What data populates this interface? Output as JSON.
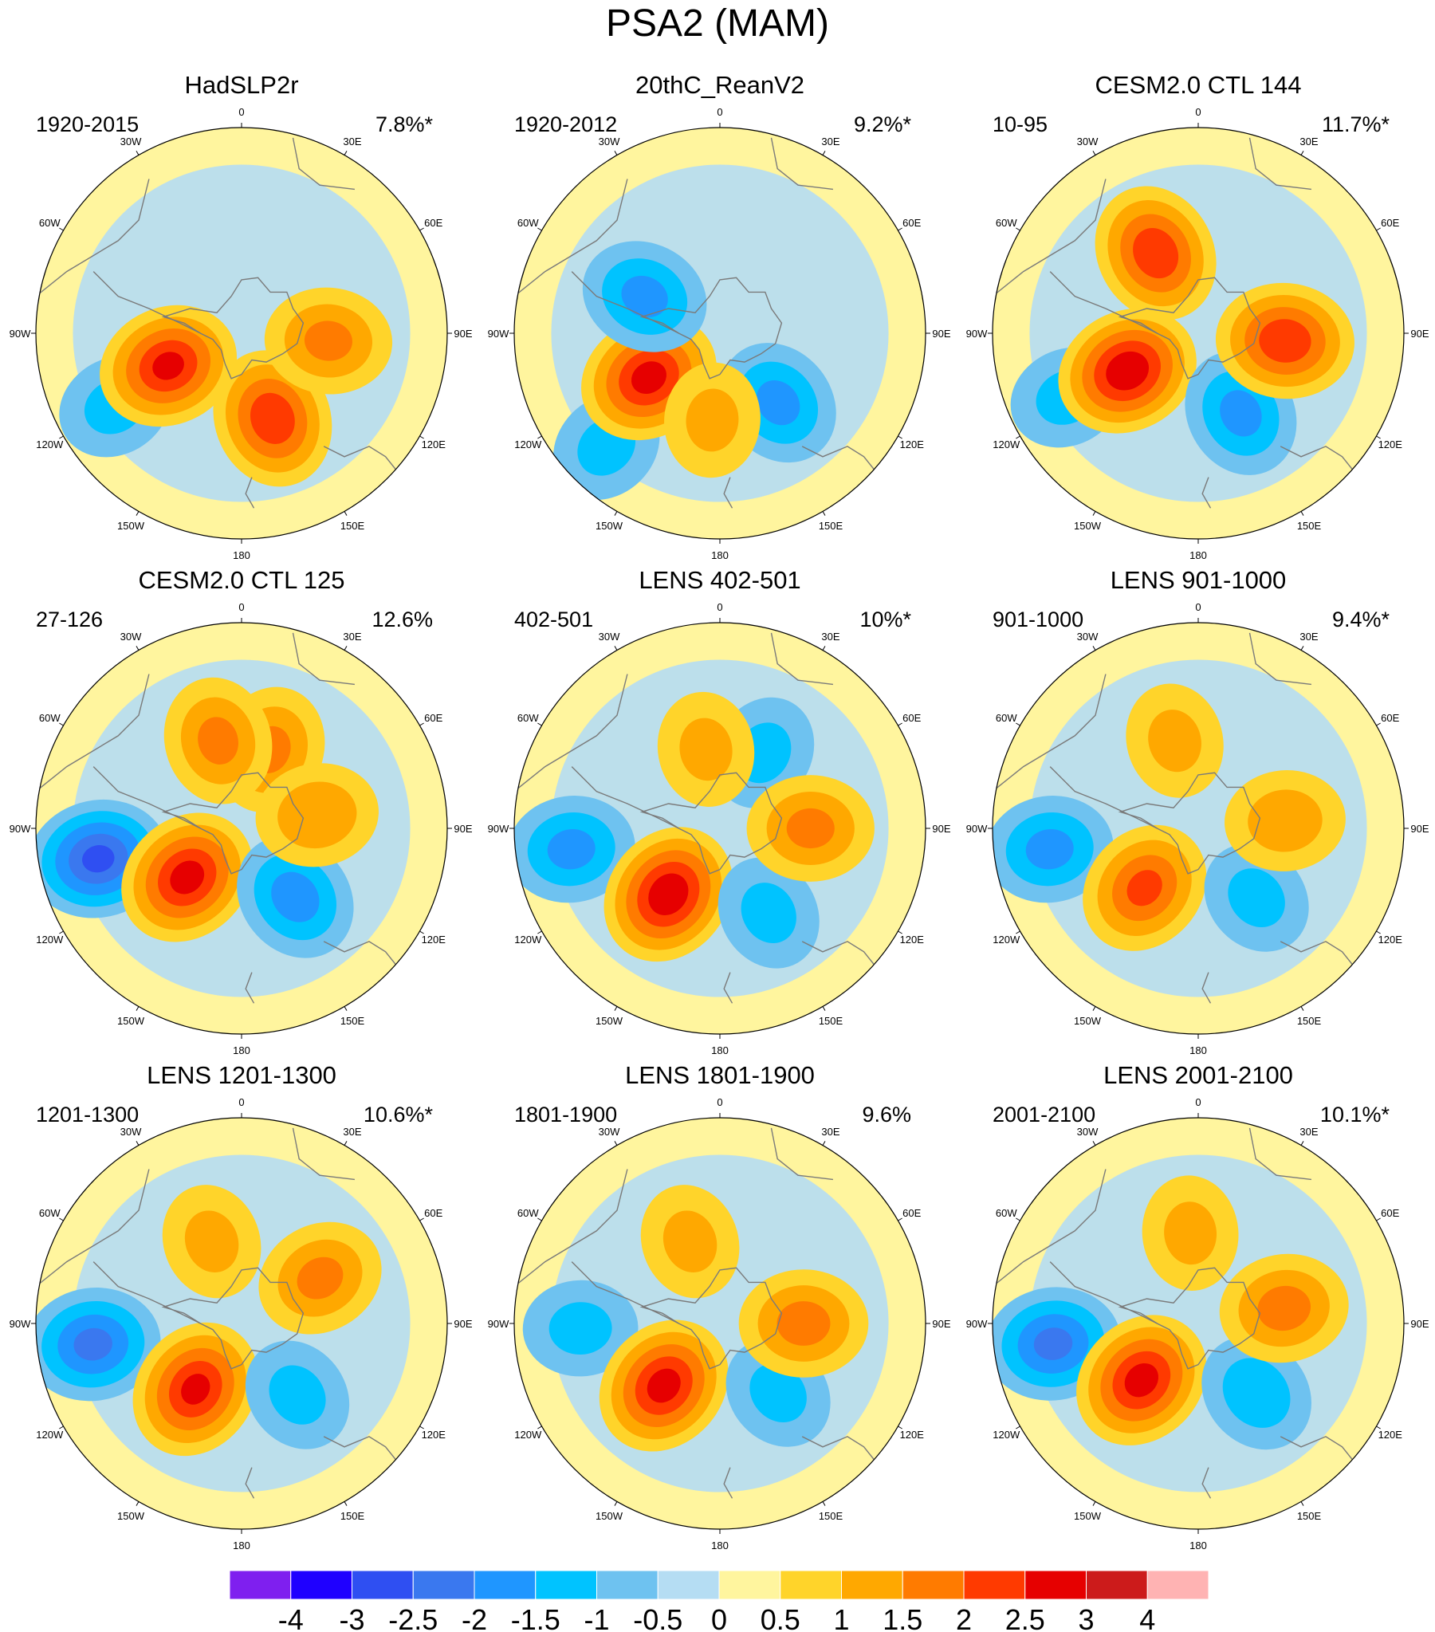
{
  "title": "PSA2 (MAM)",
  "colors": {
    "palette": [
      "#7f1fef",
      "#1f00ff",
      "#2f4ff2",
      "#3a78ef",
      "#1f96ff",
      "#00c3ff",
      "#6ec2f0",
      "#b5ddf3",
      "#fff59e",
      "#ffd42a",
      "#ffa800",
      "#ff7b00",
      "#ff3a00",
      "#e60000",
      "#cc1b1b",
      "#ffb3b3"
    ],
    "land": "#7a7a7a"
  },
  "colorbar": {
    "labels": [
      "-4",
      "-3",
      "-2.5",
      "-2",
      "-1.5",
      "-1",
      "-0.5",
      "0",
      "0.5",
      "1",
      "1.5",
      "2",
      "2.5",
      "3",
      "4"
    ]
  },
  "longitude_labels": [
    "0",
    "30E",
    "60E",
    "90E",
    "120E",
    "150E",
    "180",
    "150W",
    "120W",
    "90W",
    "60W",
    "30W"
  ],
  "panels": [
    {
      "title": "HadSLP2r",
      "period": "1920-2015",
      "variance": "7.8%*",
      "blobs": [
        [
          240,
          4.2,
          -1
        ],
        [
          246,
          2.3,
          2.5
        ],
        [
          160,
          2.6,
          2.3
        ],
        [
          95,
          2.5,
          1.5
        ]
      ]
    },
    {
      "title": "20thC_ReanV2",
      "period": "1920-2012",
      "variance": "9.2%*",
      "blobs": [
        [
          225,
          4.6,
          -1
        ],
        [
          238,
          2.4,
          2.6
        ],
        [
          140,
          2.6,
          -1.5
        ],
        [
          296,
          2.4,
          -1.5
        ],
        [
          185,
          2.5,
          1
        ]
      ]
    },
    {
      "title": "CESM2.0 CTL 144",
      "period": "10-95",
      "variance": "11.7%*",
      "blobs": [
        [
          244,
          4.2,
          -1
        ],
        [
          242,
          2.3,
          2.8
        ],
        [
          152,
          2.6,
          -1.5
        ],
        [
          95,
          2.5,
          2.3
        ],
        [
          332,
          2.6,
          2.3
        ]
      ]
    },
    {
      "title": "CESM2.0 CTL 125",
      "period": "27-126",
      "variance": "12.6%",
      "blobs": [
        [
          258,
          4.2,
          -2.5
        ],
        [
          228,
          2.1,
          2.6
        ],
        [
          142,
          2.5,
          -1.6
        ],
        [
          20,
          2.4,
          1.5
        ],
        [
          345,
          2.6,
          1.5
        ],
        [
          80,
          2.2,
          1.3
        ]
      ]
    },
    {
      "title": "LENS 402-501",
      "period": "402-501",
      "variance": "10%*",
      "blobs": [
        [
          262,
          4.3,
          -1.5
        ],
        [
          218,
          2.4,
          2.8
        ],
        [
          150,
          2.8,
          -1
        ],
        [
          30,
          2.5,
          -1
        ],
        [
          90,
          2.6,
          1.5
        ],
        [
          350,
          2.3,
          1
        ]
      ]
    },
    {
      "title": "LENS 901-1000",
      "period": "901-1000",
      "variance": "9.4%*",
      "blobs": [
        [
          262,
          4.3,
          -1.5
        ],
        [
          222,
          2.3,
          2
        ],
        [
          140,
          2.6,
          -1
        ],
        [
          345,
          2.6,
          1
        ],
        [
          85,
          2.5,
          1.2
        ]
      ]
    },
    {
      "title": "LENS 1201-1300",
      "period": "1201-1300",
      "variance": "10.6%*",
      "blobs": [
        [
          262,
          4.3,
          -2
        ],
        [
          215,
          2.3,
          2.5
        ],
        [
          142,
          2.6,
          -1
        ],
        [
          60,
          2.6,
          1.5
        ],
        [
          340,
          2.5,
          1
        ]
      ]
    },
    {
      "title": "LENS 1801-1900",
      "period": "1801-1900",
      "variance": "9.6%",
      "blobs": [
        [
          268,
          4.0,
          -1
        ],
        [
          222,
          2.4,
          2.6
        ],
        [
          140,
          2.6,
          -1
        ],
        [
          90,
          2.4,
          1.6
        ],
        [
          340,
          2.5,
          1
        ]
      ]
    },
    {
      "title": "LENS 2001-2100",
      "period": "2001-2100",
      "variance": "10.1%*",
      "blobs": [
        [
          262,
          4.2,
          -2
        ],
        [
          225,
          2.3,
          2.6
        ],
        [
          140,
          2.6,
          -1.2
        ],
        [
          80,
          2.5,
          1.6
        ],
        [
          355,
          2.6,
          1
        ]
      ]
    }
  ]
}
